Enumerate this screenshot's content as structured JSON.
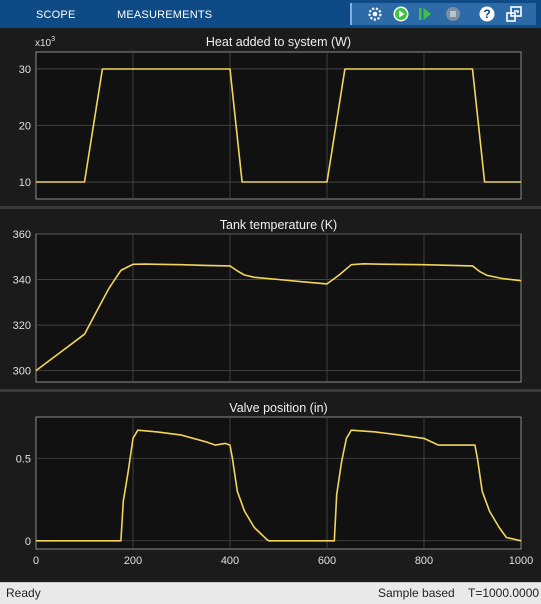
{
  "toolbar": {
    "tabs": [
      {
        "label": "SCOPE"
      },
      {
        "label": "MEASUREMENTS"
      }
    ],
    "icons": [
      "settings-icon",
      "run-icon",
      "step-forward-icon",
      "stop-icon",
      "help-icon",
      "undock-icon"
    ],
    "colors": {
      "bar": "#0e4a86",
      "toolstrip": "#2c6aa8",
      "run": "#3fc43f"
    }
  },
  "status": {
    "ready": "Ready",
    "mode": "Sample based",
    "time": "T=1000.0000"
  },
  "line_color": "#f2d55a",
  "chart_data": [
    {
      "type": "line",
      "title": "Heat added to system (W)",
      "multiplier": "x10",
      "multiplier_exp": "3",
      "xlim": [
        0,
        1000
      ],
      "ylim": [
        7,
        33
      ],
      "yticks": [
        10,
        20,
        30
      ],
      "ytick_labels": [
        "10",
        "20",
        "30"
      ],
      "grid": true,
      "series": [
        {
          "x": [
            0,
            100,
            137,
            400,
            425,
            600,
            637,
            900,
            925,
            1000
          ],
          "y": [
            10,
            10,
            30,
            30,
            10,
            10,
            30,
            30,
            10,
            10
          ]
        }
      ]
    },
    {
      "type": "line",
      "title": "Tank temperature (K)",
      "xlim": [
        0,
        1000
      ],
      "ylim": [
        295,
        360
      ],
      "yticks": [
        300,
        320,
        340,
        360
      ],
      "ytick_labels": [
        "300",
        "320",
        "340",
        "360"
      ],
      "grid": true,
      "series": [
        {
          "x": [
            0,
            25,
            50,
            75,
            100,
            125,
            150,
            175,
            200,
            225,
            250,
            300,
            350,
            400,
            415,
            430,
            450,
            500,
            550,
            600,
            625,
            650,
            675,
            700,
            800,
            900,
            915,
            930,
            960,
            1000
          ],
          "y": [
            300,
            304,
            308,
            312,
            316,
            326,
            336,
            344,
            346.7,
            346.8,
            346.7,
            346.5,
            346.2,
            346,
            343.8,
            342,
            341,
            340,
            339,
            338.1,
            342,
            346.5,
            346.9,
            346.8,
            346.5,
            346,
            343.5,
            341.8,
            340.5,
            339.5
          ]
        }
      ]
    },
    {
      "type": "line",
      "title": "Valve position (in)",
      "xlim": [
        0,
        1000
      ],
      "ylim": [
        -0.05,
        0.75
      ],
      "yticks": [
        0,
        0.5
      ],
      "ytick_labels": [
        "0",
        "0.5"
      ],
      "xticks": [
        0,
        200,
        400,
        600,
        800,
        1000
      ],
      "xtick_labels": [
        "0",
        "200",
        "400",
        "600",
        "800",
        "1000"
      ],
      "grid": true,
      "series": [
        {
          "x": [
            0,
            175,
            180,
            190,
            200,
            210,
            250,
            300,
            350,
            370,
            390,
            400,
            405,
            415,
            430,
            450,
            475,
            480,
            615,
            620,
            630,
            640,
            650,
            700,
            750,
            800,
            830,
            890,
            905,
            910,
            920,
            935,
            955,
            970,
            1000
          ],
          "y": [
            0,
            0,
            0.24,
            0.42,
            0.62,
            0.67,
            0.66,
            0.64,
            0.6,
            0.58,
            0.59,
            0.58,
            0.5,
            0.3,
            0.18,
            0.08,
            0.01,
            0,
            0,
            0.28,
            0.48,
            0.62,
            0.67,
            0.66,
            0.64,
            0.62,
            0.58,
            0.58,
            0.58,
            0.5,
            0.3,
            0.18,
            0.08,
            0.02,
            0
          ]
        }
      ]
    }
  ]
}
